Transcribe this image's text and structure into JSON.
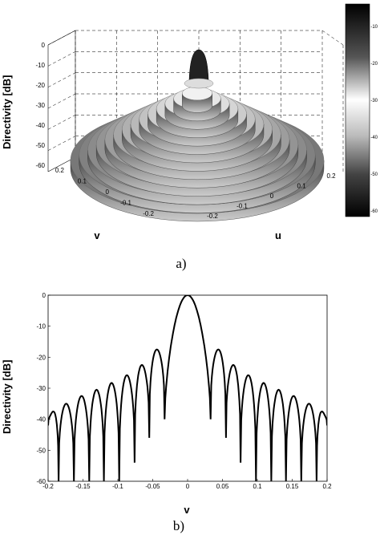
{
  "chart_data": [
    {
      "panel": "a)",
      "type": "surface",
      "zlabel": "Directivity [dB]",
      "xlabel": "v",
      "ylabel": "u",
      "zlim": [
        -60,
        0
      ],
      "z_ticks": [
        "0",
        "-10",
        "-20",
        "-30",
        "-40",
        "-50",
        "-60"
      ],
      "v_ticks": [
        "0.2",
        "0.1",
        "0",
        "-0.1",
        "-0.2"
      ],
      "u_ticks": [
        "-0.2",
        "-0.1",
        "0",
        "0.1",
        "0.2"
      ],
      "colorbar_ticks": [
        "-10",
        "-20",
        "-30",
        "-40",
        "-50",
        "-60"
      ],
      "colormap": "gray",
      "grid": true
    },
    {
      "panel": "b)",
      "type": "line",
      "xlabel": "v",
      "ylabel": "Directivity [dB]",
      "xlim": [
        -0.2,
        0.2
      ],
      "ylim": [
        -60,
        0
      ],
      "x_ticks": [
        "-0.2",
        "-0.15",
        "-0.1",
        "-0.05",
        "0",
        "0.05",
        "0.1",
        "0.15",
        "0.2"
      ],
      "y_ticks": [
        "0",
        "-10",
        "-20",
        "-30",
        "-40",
        "-50",
        "-60"
      ],
      "series": [
        {
          "peaks": [
            {
              "v": 0.0,
              "db": 0
            },
            {
              "v": 0.043,
              "db": -17.5
            },
            {
              "v": 0.065,
              "db": -22.5
            },
            {
              "v": 0.086,
              "db": -25.8
            },
            {
              "v": 0.108,
              "db": -28.3
            },
            {
              "v": 0.13,
              "db": -30.5
            },
            {
              "v": 0.152,
              "db": -32.5
            },
            {
              "v": 0.174,
              "db": -35
            },
            {
              "v": 0.196,
              "db": -37.5
            }
          ],
          "nulls": [
            {
              "v": 0.033,
              "db": -40
            },
            {
              "v": 0.055,
              "db": -46
            },
            {
              "v": 0.076,
              "db": -54
            },
            {
              "v": 0.098,
              "db": -60
            },
            {
              "v": 0.12,
              "db": -60
            },
            {
              "v": 0.141,
              "db": -60
            },
            {
              "v": 0.163,
              "db": -60
            },
            {
              "v": 0.185,
              "db": -60
            }
          ],
          "edge_db": -42
        }
      ]
    }
  ],
  "captions": {
    "a": "a)",
    "b": "b)"
  }
}
